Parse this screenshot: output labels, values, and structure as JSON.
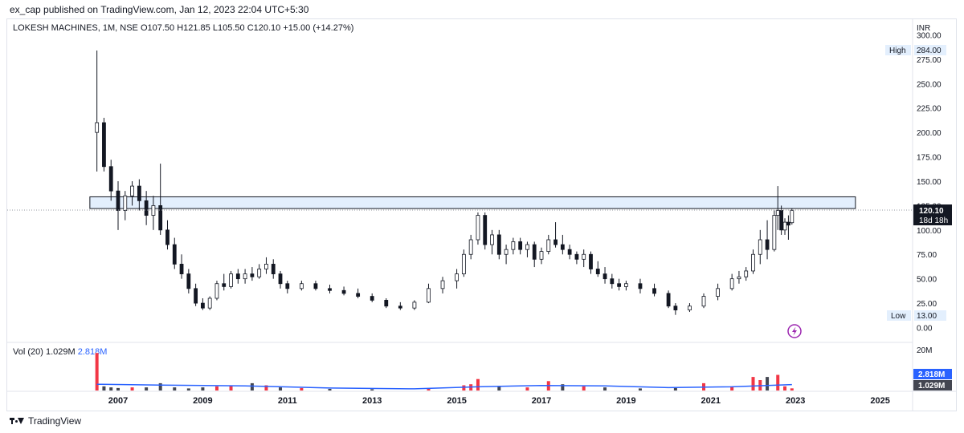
{
  "header": {
    "published": "ex_cap published on TradingView.com, Jan 12, 2023 22:04 UTC+5:30"
  },
  "legend": {
    "symbol": "LOKESH MACHINES, 1M, NSE",
    "open": "O107.50",
    "high": "H121.85",
    "low": "L105.50",
    "close": "C120.10",
    "change": "+15.00 (+14.27%)"
  },
  "volume_legend": {
    "label": "Vol (20)",
    "value1": "1.029M",
    "value2": "2.818M"
  },
  "price_axis": {
    "currency": "INR",
    "ticks": [
      "300.00",
      "275.00",
      "250.00",
      "225.00",
      "200.00",
      "175.00",
      "150.00",
      "125.00",
      "100.00",
      "75.00",
      "50.00",
      "25.00",
      "0.00"
    ]
  },
  "badges": {
    "high_label": "High",
    "high_value": "284.00",
    "low_label": "Low",
    "low_value": "13.00",
    "last_price": "120.10",
    "countdown": "18d 18h"
  },
  "volume_axis": {
    "top": "20M",
    "ma_value": "2.818M",
    "vol_value": "1.029M"
  },
  "time_axis": {
    "labels": [
      "2007",
      "2009",
      "2011",
      "2013",
      "2015",
      "2017",
      "2019",
      "2021",
      "2023",
      "2025"
    ]
  },
  "footer": {
    "brand": "TradingView"
  },
  "colors": {
    "up": "#ffffff",
    "down": "#131722",
    "zone_fill": "#e3effd",
    "zone_stroke": "#131722",
    "vol_up": "#f23645",
    "vol_down": "#434651",
    "vol_ma": "#2962ff",
    "axis_text": "#131722",
    "lightning": "#9c27b0"
  },
  "chart_data": {
    "type": "candlestick",
    "interval": "1M",
    "y_axis": {
      "min": 0,
      "max": 300,
      "unit": "INR"
    },
    "zone": {
      "from": "2006-05",
      "to": "2024-06",
      "low": 122,
      "high": 134
    },
    "current_price": 120.1,
    "high": 284.0,
    "low": 13.0,
    "series": [
      {
        "date": "2006-07",
        "o": 200,
        "h": 284,
        "l": 160,
        "c": 210
      },
      {
        "date": "2006-09",
        "o": 210,
        "h": 215,
        "l": 160,
        "c": 165
      },
      {
        "date": "2006-11",
        "o": 165,
        "h": 172,
        "l": 130,
        "c": 140
      },
      {
        "date": "2007-01",
        "o": 140,
        "h": 150,
        "l": 100,
        "c": 120
      },
      {
        "date": "2007-03",
        "o": 120,
        "h": 140,
        "l": 110,
        "c": 135
      },
      {
        "date": "2007-05",
        "o": 135,
        "h": 150,
        "l": 125,
        "c": 145
      },
      {
        "date": "2007-07",
        "o": 145,
        "h": 152,
        "l": 120,
        "c": 130
      },
      {
        "date": "2007-09",
        "o": 130,
        "h": 140,
        "l": 105,
        "c": 115
      },
      {
        "date": "2007-11",
        "o": 115,
        "h": 135,
        "l": 100,
        "c": 125
      },
      {
        "date": "2008-01",
        "o": 125,
        "h": 168,
        "l": 95,
        "c": 100
      },
      {
        "date": "2008-03",
        "o": 100,
        "h": 110,
        "l": 80,
        "c": 85
      },
      {
        "date": "2008-05",
        "o": 85,
        "h": 92,
        "l": 60,
        "c": 65
      },
      {
        "date": "2008-07",
        "o": 65,
        "h": 75,
        "l": 50,
        "c": 55
      },
      {
        "date": "2008-09",
        "o": 55,
        "h": 60,
        "l": 35,
        "c": 40
      },
      {
        "date": "2008-11",
        "o": 40,
        "h": 45,
        "l": 22,
        "c": 25
      },
      {
        "date": "2009-01",
        "o": 25,
        "h": 30,
        "l": 18,
        "c": 20
      },
      {
        "date": "2009-03",
        "o": 20,
        "h": 32,
        "l": 18,
        "c": 30
      },
      {
        "date": "2009-05",
        "o": 30,
        "h": 48,
        "l": 28,
        "c": 45
      },
      {
        "date": "2009-07",
        "o": 45,
        "h": 55,
        "l": 38,
        "c": 42
      },
      {
        "date": "2009-09",
        "o": 42,
        "h": 58,
        "l": 40,
        "c": 55
      },
      {
        "date": "2009-11",
        "o": 55,
        "h": 60,
        "l": 45,
        "c": 50
      },
      {
        "date": "2010-01",
        "o": 50,
        "h": 60,
        "l": 45,
        "c": 55
      },
      {
        "date": "2010-03",
        "o": 55,
        "h": 62,
        "l": 48,
        "c": 52
      },
      {
        "date": "2010-05",
        "o": 52,
        "h": 65,
        "l": 50,
        "c": 60
      },
      {
        "date": "2010-07",
        "o": 60,
        "h": 72,
        "l": 55,
        "c": 65
      },
      {
        "date": "2010-09",
        "o": 65,
        "h": 70,
        "l": 50,
        "c": 55
      },
      {
        "date": "2010-11",
        "o": 55,
        "h": 58,
        "l": 40,
        "c": 45
      },
      {
        "date": "2011-01",
        "o": 45,
        "h": 48,
        "l": 35,
        "c": 40
      },
      {
        "date": "2011-05",
        "o": 40,
        "h": 48,
        "l": 38,
        "c": 45
      },
      {
        "date": "2011-09",
        "o": 45,
        "h": 48,
        "l": 38,
        "c": 40
      },
      {
        "date": "2012-01",
        "o": 40,
        "h": 44,
        "l": 35,
        "c": 38
      },
      {
        "date": "2012-05",
        "o": 38,
        "h": 42,
        "l": 33,
        "c": 35
      },
      {
        "date": "2012-09",
        "o": 35,
        "h": 40,
        "l": 30,
        "c": 32
      },
      {
        "date": "2013-01",
        "o": 32,
        "h": 35,
        "l": 26,
        "c": 28
      },
      {
        "date": "2013-05",
        "o": 28,
        "h": 30,
        "l": 20,
        "c": 22
      },
      {
        "date": "2013-09",
        "o": 22,
        "h": 26,
        "l": 18,
        "c": 20
      },
      {
        "date": "2014-01",
        "o": 20,
        "h": 28,
        "l": 18,
        "c": 26
      },
      {
        "date": "2014-05",
        "o": 26,
        "h": 45,
        "l": 25,
        "c": 40
      },
      {
        "date": "2014-09",
        "o": 40,
        "h": 52,
        "l": 35,
        "c": 48
      },
      {
        "date": "2015-01",
        "o": 48,
        "h": 60,
        "l": 40,
        "c": 55
      },
      {
        "date": "2015-03",
        "o": 55,
        "h": 80,
        "l": 52,
        "c": 75
      },
      {
        "date": "2015-05",
        "o": 75,
        "h": 95,
        "l": 70,
        "c": 90
      },
      {
        "date": "2015-07",
        "o": 90,
        "h": 118,
        "l": 85,
        "c": 115
      },
      {
        "date": "2015-09",
        "o": 115,
        "h": 118,
        "l": 80,
        "c": 85
      },
      {
        "date": "2015-11",
        "o": 85,
        "h": 100,
        "l": 75,
        "c": 95
      },
      {
        "date": "2016-01",
        "o": 95,
        "h": 100,
        "l": 70,
        "c": 75
      },
      {
        "date": "2016-03",
        "o": 75,
        "h": 85,
        "l": 65,
        "c": 80
      },
      {
        "date": "2016-05",
        "o": 80,
        "h": 92,
        "l": 75,
        "c": 88
      },
      {
        "date": "2016-07",
        "o": 88,
        "h": 92,
        "l": 75,
        "c": 80
      },
      {
        "date": "2016-09",
        "o": 80,
        "h": 88,
        "l": 72,
        "c": 85
      },
      {
        "date": "2016-11",
        "o": 85,
        "h": 88,
        "l": 62,
        "c": 70
      },
      {
        "date": "2017-01",
        "o": 70,
        "h": 82,
        "l": 65,
        "c": 78
      },
      {
        "date": "2017-03",
        "o": 78,
        "h": 95,
        "l": 75,
        "c": 90
      },
      {
        "date": "2017-05",
        "o": 90,
        "h": 108,
        "l": 82,
        "c": 85
      },
      {
        "date": "2017-07",
        "o": 85,
        "h": 95,
        "l": 75,
        "c": 80
      },
      {
        "date": "2017-09",
        "o": 80,
        "h": 85,
        "l": 70,
        "c": 75
      },
      {
        "date": "2017-11",
        "o": 75,
        "h": 78,
        "l": 65,
        "c": 70
      },
      {
        "date": "2018-01",
        "o": 70,
        "h": 80,
        "l": 62,
        "c": 75
      },
      {
        "date": "2018-03",
        "o": 75,
        "h": 78,
        "l": 55,
        "c": 60
      },
      {
        "date": "2018-05",
        "o": 60,
        "h": 68,
        "l": 52,
        "c": 55
      },
      {
        "date": "2018-07",
        "o": 55,
        "h": 62,
        "l": 45,
        "c": 50
      },
      {
        "date": "2018-09",
        "o": 50,
        "h": 55,
        "l": 40,
        "c": 45
      },
      {
        "date": "2018-11",
        "o": 45,
        "h": 50,
        "l": 38,
        "c": 42
      },
      {
        "date": "2019-01",
        "o": 42,
        "h": 48,
        "l": 38,
        "c": 45
      },
      {
        "date": "2019-05",
        "o": 45,
        "h": 50,
        "l": 35,
        "c": 40
      },
      {
        "date": "2019-09",
        "o": 40,
        "h": 45,
        "l": 32,
        "c": 35
      },
      {
        "date": "2020-01",
        "o": 35,
        "h": 38,
        "l": 20,
        "c": 22
      },
      {
        "date": "2020-03",
        "o": 22,
        "h": 25,
        "l": 13,
        "c": 18
      },
      {
        "date": "2020-07",
        "o": 18,
        "h": 25,
        "l": 16,
        "c": 22
      },
      {
        "date": "2020-11",
        "o": 22,
        "h": 35,
        "l": 20,
        "c": 32
      },
      {
        "date": "2021-03",
        "o": 32,
        "h": 45,
        "l": 28,
        "c": 40
      },
      {
        "date": "2021-07",
        "o": 40,
        "h": 55,
        "l": 38,
        "c": 50
      },
      {
        "date": "2021-09",
        "o": 50,
        "h": 58,
        "l": 45,
        "c": 52
      },
      {
        "date": "2021-11",
        "o": 52,
        "h": 62,
        "l": 48,
        "c": 58
      },
      {
        "date": "2022-01",
        "o": 58,
        "h": 80,
        "l": 55,
        "c": 75
      },
      {
        "date": "2022-03",
        "o": 75,
        "h": 100,
        "l": 65,
        "c": 90
      },
      {
        "date": "2022-05",
        "o": 90,
        "h": 110,
        "l": 70,
        "c": 80
      },
      {
        "date": "2022-07",
        "o": 80,
        "h": 120,
        "l": 78,
        "c": 115
      },
      {
        "date": "2022-08",
        "o": 115,
        "h": 145,
        "l": 100,
        "c": 120
      },
      {
        "date": "2022-09",
        "o": 120,
        "h": 125,
        "l": 95,
        "c": 100
      },
      {
        "date": "2022-10",
        "o": 100,
        "h": 112,
        "l": 95,
        "c": 108
      },
      {
        "date": "2022-11",
        "o": 108,
        "h": 115,
        "l": 90,
        "c": 105
      },
      {
        "date": "2022-12",
        "o": 107.5,
        "h": 121.85,
        "l": 105.5,
        "c": 120.1
      }
    ],
    "volume": {
      "unit": "M",
      "max": 20,
      "bars": [
        {
          "date": "2006-07",
          "v": 18
        },
        {
          "date": "2006-09",
          "v": 2
        },
        {
          "date": "2006-11",
          "v": 1.5
        },
        {
          "date": "2007-01",
          "v": 1.2
        },
        {
          "date": "2007-05",
          "v": 1.5
        },
        {
          "date": "2007-09",
          "v": 1.5
        },
        {
          "date": "2008-01",
          "v": 3.5
        },
        {
          "date": "2008-05",
          "v": 1.5
        },
        {
          "date": "2008-09",
          "v": 1
        },
        {
          "date": "2009-01",
          "v": 1.5
        },
        {
          "date": "2009-05",
          "v": 2
        },
        {
          "date": "2009-09",
          "v": 2.5
        },
        {
          "date": "2010-03",
          "v": 3.5
        },
        {
          "date": "2010-07",
          "v": 2.5
        },
        {
          "date": "2010-11",
          "v": 1.5
        },
        {
          "date": "2011-05",
          "v": 1.2
        },
        {
          "date": "2012-01",
          "v": 0.8
        },
        {
          "date": "2013-01",
          "v": 0.6
        },
        {
          "date": "2014-05",
          "v": 0.8
        },
        {
          "date": "2015-03",
          "v": 2.5
        },
        {
          "date": "2015-05",
          "v": 3
        },
        {
          "date": "2015-07",
          "v": 5.5
        },
        {
          "date": "2016-01",
          "v": 2
        },
        {
          "date": "2016-09",
          "v": 1.5
        },
        {
          "date": "2017-03",
          "v": 4.5
        },
        {
          "date": "2017-07",
          "v": 3
        },
        {
          "date": "2018-01",
          "v": 2
        },
        {
          "date": "2018-07",
          "v": 1.5
        },
        {
          "date": "2019-05",
          "v": 1
        },
        {
          "date": "2020-03",
          "v": 1.2
        },
        {
          "date": "2020-11",
          "v": 3.5
        },
        {
          "date": "2021-07",
          "v": 2
        },
        {
          "date": "2022-01",
          "v": 6.5
        },
        {
          "date": "2022-03",
          "v": 5
        },
        {
          "date": "2022-05",
          "v": 6.5
        },
        {
          "date": "2022-08",
          "v": 7.5
        },
        {
          "date": "2022-10",
          "v": 2
        },
        {
          "date": "2022-12",
          "v": 1.029
        }
      ],
      "ma": [
        {
          "date": "2006-07",
          "v": 3
        },
        {
          "date": "2008-01",
          "v": 2.6
        },
        {
          "date": "2010-01",
          "v": 2.2
        },
        {
          "date": "2012-01",
          "v": 1.2
        },
        {
          "date": "2014-01",
          "v": 0.8
        },
        {
          "date": "2015-07",
          "v": 1.8
        },
        {
          "date": "2017-01",
          "v": 2.4
        },
        {
          "date": "2018-07",
          "v": 2.2
        },
        {
          "date": "2020-01",
          "v": 1.4
        },
        {
          "date": "2021-07",
          "v": 1.8
        },
        {
          "date": "2022-08",
          "v": 2.6
        },
        {
          "date": "2022-12",
          "v": 2.818
        }
      ]
    }
  }
}
